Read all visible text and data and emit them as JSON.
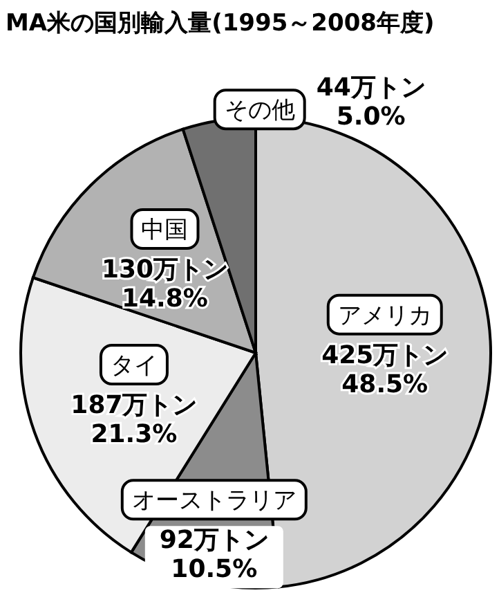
{
  "chart_data": {
    "type": "pie",
    "title": "MA米の国別輸入量(1995～2008年度)",
    "categories": [
      "アメリカ",
      "オーストラリア",
      "タイ",
      "中国",
      "その他"
    ],
    "values": [
      425,
      92,
      187,
      130,
      44
    ],
    "value_labels": [
      "425万トン\n48.5%",
      "92万トン\n10.5%",
      "187万トン\n21.3%",
      "130万トン\n14.8%",
      "44万トン\n5.0%"
    ],
    "colors": [
      "#d2d2d2",
      "#8c8c8c",
      "#ececec",
      "#b2b2b2",
      "#707070"
    ]
  }
}
